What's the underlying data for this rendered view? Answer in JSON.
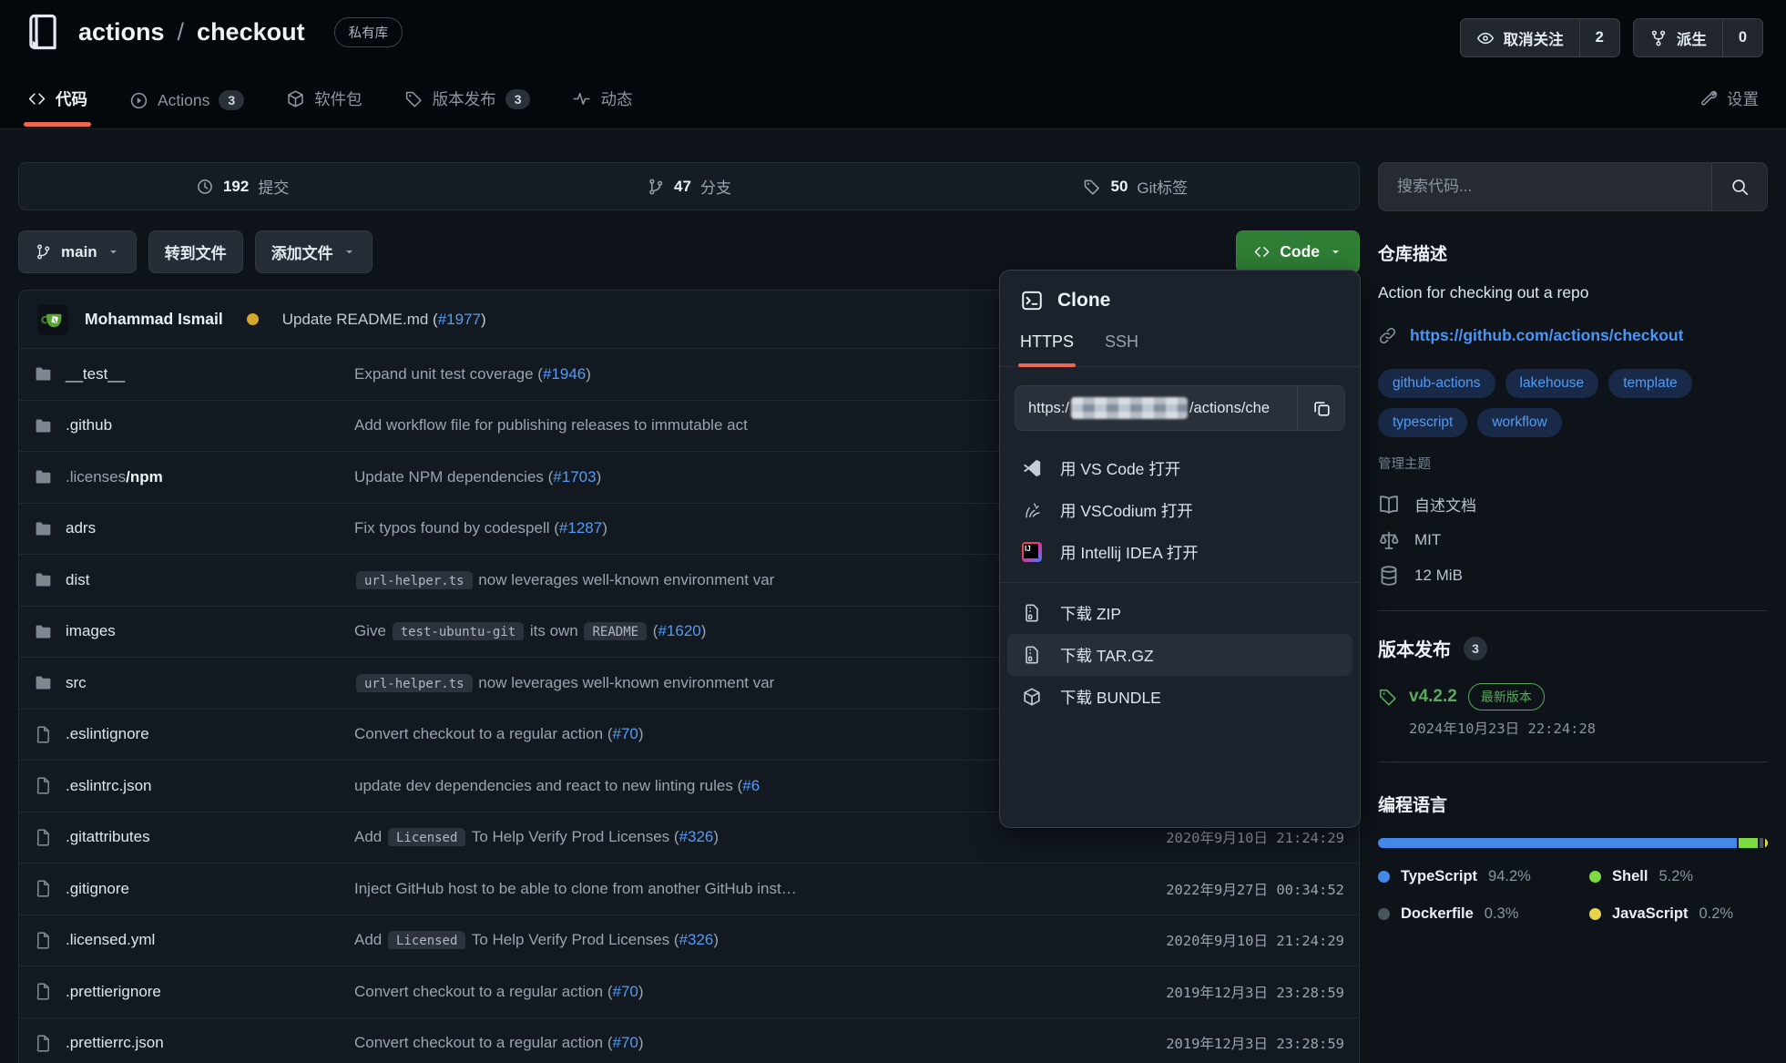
{
  "header": {
    "repo_owner": "actions",
    "separator": "/",
    "repo_name": "checkout",
    "visibility_badge": "私有库",
    "unwatch_label": "取消关注",
    "unwatch_count": "2",
    "fork_label": "派生",
    "fork_count": "0"
  },
  "tabs": {
    "code": "代码",
    "actions": "Actions",
    "actions_count": "3",
    "packages": "软件包",
    "releases": "版本发布",
    "releases_count": "3",
    "activity": "动态",
    "settings": "设置"
  },
  "stats": {
    "commits_value": "192",
    "commits_label": "提交",
    "branches_value": "47",
    "branches_label": "分支",
    "tags_value": "50",
    "tags_label": "Git标签"
  },
  "toolbar": {
    "branch": "main",
    "goto_file": "转到文件",
    "add_file": "添加文件",
    "code_label": "Code"
  },
  "latest_commit": {
    "author": "Mohammad Ismail",
    "message_prefix": "Update README.md (",
    "message_link": "#1977",
    "message_suffix": ")"
  },
  "files": [
    {
      "type": "dir",
      "n1": "__test__",
      "n2": "",
      "date": "",
      "msg": [
        {
          "t": "text",
          "v": "Expand unit test coverage ("
        },
        {
          "t": "link",
          "v": "#1946"
        },
        {
          "t": "text",
          "v": ")"
        }
      ]
    },
    {
      "type": "dir",
      "n1": ".github",
      "n2": "",
      "date": "",
      "msg": [
        {
          "t": "text",
          "v": "Add workflow file for publishing releases to immutable act"
        }
      ]
    },
    {
      "type": "dir",
      "n1": ".licenses",
      "n2": "/npm",
      "date": "",
      "msg": [
        {
          "t": "text",
          "v": "Update NPM dependencies ("
        },
        {
          "t": "link",
          "v": "#1703"
        },
        {
          "t": "text",
          "v": ")"
        }
      ]
    },
    {
      "type": "dir",
      "n1": "adrs",
      "n2": "",
      "date": "",
      "msg": [
        {
          "t": "text",
          "v": "Fix typos found by codespell ("
        },
        {
          "t": "link",
          "v": "#1287"
        },
        {
          "t": "text",
          "v": ")"
        }
      ]
    },
    {
      "type": "dir",
      "n1": "dist",
      "n2": "",
      "date": "",
      "msg": [
        {
          "t": "code",
          "v": "url-helper.ts"
        },
        {
          "t": "text",
          "v": " now leverages well-known environment var"
        }
      ]
    },
    {
      "type": "dir",
      "n1": "images",
      "n2": "",
      "date": "",
      "msg": [
        {
          "t": "text",
          "v": "Give "
        },
        {
          "t": "code",
          "v": "test-ubuntu-git"
        },
        {
          "t": "text",
          "v": " its own "
        },
        {
          "t": "code",
          "v": "README"
        },
        {
          "t": "text",
          "v": " ("
        },
        {
          "t": "link",
          "v": "#1620"
        },
        {
          "t": "text",
          "v": ")"
        }
      ]
    },
    {
      "type": "dir",
      "n1": "src",
      "n2": "",
      "date": "",
      "msg": [
        {
          "t": "code",
          "v": "url-helper.ts"
        },
        {
          "t": "text",
          "v": " now leverages well-known environment var"
        }
      ]
    },
    {
      "type": "file",
      "n1": ".eslintignore",
      "n2": "",
      "date": "",
      "msg": [
        {
          "t": "text",
          "v": "Convert checkout to a regular action ("
        },
        {
          "t": "link",
          "v": "#70"
        },
        {
          "t": "text",
          "v": ")"
        }
      ]
    },
    {
      "type": "file",
      "n1": ".eslintrc.json",
      "n2": "",
      "date": "",
      "msg": [
        {
          "t": "text",
          "v": "update dev dependencies and react to new linting rules ("
        },
        {
          "t": "link",
          "v": "#6"
        }
      ]
    },
    {
      "type": "file",
      "n1": ".gitattributes",
      "n2": "",
      "date": "2020年9月10日 21:24:29",
      "msg": [
        {
          "t": "text",
          "v": "Add "
        },
        {
          "t": "code",
          "v": "Licensed"
        },
        {
          "t": "text",
          "v": " To Help Verify Prod Licenses ("
        },
        {
          "t": "link",
          "v": "#326"
        },
        {
          "t": "text",
          "v": ")"
        }
      ]
    },
    {
      "type": "file",
      "n1": ".gitignore",
      "n2": "",
      "date": "2022年9月27日 00:34:52",
      "msg": [
        {
          "t": "text",
          "v": "Inject GitHub host to be able to clone from another GitHub inst…"
        }
      ]
    },
    {
      "type": "file",
      "n1": ".licensed.yml",
      "n2": "",
      "date": "2020年9月10日 21:24:29",
      "msg": [
        {
          "t": "text",
          "v": "Add "
        },
        {
          "t": "code",
          "v": "Licensed"
        },
        {
          "t": "text",
          "v": " To Help Verify Prod Licenses ("
        },
        {
          "t": "link",
          "v": "#326"
        },
        {
          "t": "text",
          "v": ")"
        }
      ]
    },
    {
      "type": "file",
      "n1": ".prettierignore",
      "n2": "",
      "date": "2019年12月3日 23:28:59",
      "msg": [
        {
          "t": "text",
          "v": "Convert checkout to a regular action ("
        },
        {
          "t": "link",
          "v": "#70"
        },
        {
          "t": "text",
          "v": ")"
        }
      ]
    },
    {
      "type": "file",
      "n1": ".prettierrc.json",
      "n2": "",
      "date": "2019年12月3日 23:28:59",
      "msg": [
        {
          "t": "text",
          "v": "Convert checkout to a regular action ("
        },
        {
          "t": "link",
          "v": "#70"
        },
        {
          "t": "text",
          "v": ")"
        }
      ]
    }
  ],
  "clone_menu": {
    "title": "Clone",
    "tab_https": "HTTPS",
    "tab_ssh": "SSH",
    "url_prefix": "https:/",
    "url_suffix": "/actions/che",
    "items": [
      {
        "icon": "vscode",
        "label": "用 VS Code 打开",
        "hovered": false,
        "group": 1
      },
      {
        "icon": "vscodium",
        "label": "用 VSCodium 打开",
        "hovered": false,
        "group": 1
      },
      {
        "icon": "idea",
        "label": "用 Intellij IDEA 打开",
        "hovered": false,
        "group": 1
      },
      {
        "icon": "zip",
        "label": "下载 ZIP",
        "hovered": false,
        "group": 2
      },
      {
        "icon": "zip",
        "label": "下载 TAR.GZ",
        "hovered": true,
        "group": 2
      },
      {
        "icon": "bundle",
        "label": "下载 BUNDLE",
        "hovered": false,
        "group": 2
      }
    ]
  },
  "sidebar": {
    "search_placeholder": "搜索代码...",
    "desc_heading": "仓库描述",
    "description": "Action for checking out a repo",
    "website": "https://github.com/actions/checkout",
    "topics": [
      "github-actions",
      "lakehouse",
      "template",
      "typescript",
      "workflow"
    ],
    "manage_topics": "管理主题",
    "meta_readme": "自述文档",
    "meta_license": "MIT",
    "meta_size": "12 MiB",
    "releases_heading": "版本发布",
    "releases_count": "3",
    "release_version": "v4.2.2",
    "release_badge": "最新版本",
    "release_date": "2024年10月23日 22:24:28",
    "languages_heading": "编程语言",
    "languages": [
      {
        "name": "TypeScript",
        "pct": "94.2%",
        "value": 94.2,
        "color": "#4688e8"
      },
      {
        "name": "Shell",
        "pct": "5.2%",
        "value": 5.2,
        "color": "#7ddb40"
      },
      {
        "name": "Dockerfile",
        "pct": "0.3%",
        "value": 0.3,
        "color": "#46555e"
      },
      {
        "name": "JavaScript",
        "pct": "0.2%",
        "value": 0.2,
        "color": "#e6d54a"
      }
    ]
  }
}
